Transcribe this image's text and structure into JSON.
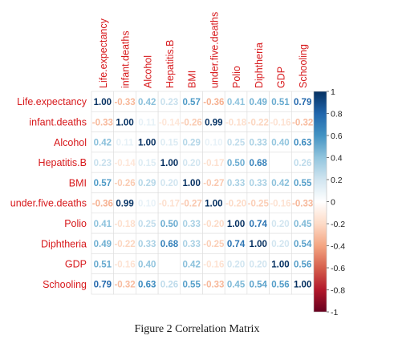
{
  "chart_data": {
    "type": "heatmap",
    "variables": [
      "Life.expectancy",
      "infant.deaths",
      "Alcohol",
      "Hepatitis.B",
      "BMI",
      "under.five.deaths",
      "Polio",
      "Diphtheria",
      "GDP",
      "Schooling"
    ],
    "matrix": [
      [
        1.0,
        -0.33,
        0.42,
        0.23,
        0.57,
        -0.36,
        0.41,
        0.49,
        0.51,
        0.79
      ],
      [
        -0.33,
        1.0,
        0.11,
        -0.14,
        -0.26,
        0.99,
        -0.18,
        -0.22,
        -0.16,
        -0.32
      ],
      [
        0.42,
        0.11,
        1.0,
        0.15,
        0.29,
        0.1,
        0.25,
        0.33,
        0.4,
        0.63
      ],
      [
        0.23,
        -0.14,
        0.15,
        1.0,
        0.2,
        -0.17,
        0.5,
        0.68,
        null,
        0.26
      ],
      [
        0.57,
        -0.26,
        0.29,
        0.2,
        1.0,
        -0.27,
        0.33,
        0.33,
        0.42,
        0.55
      ],
      [
        -0.36,
        0.99,
        0.1,
        -0.17,
        -0.27,
        1.0,
        -0.2,
        -0.25,
        -0.16,
        -0.33
      ],
      [
        0.41,
        -0.18,
        0.25,
        0.5,
        0.33,
        -0.2,
        1.0,
        0.74,
        0.2,
        0.45
      ],
      [
        0.49,
        -0.22,
        0.33,
        0.68,
        0.33,
        -0.25,
        0.74,
        1.0,
        0.2,
        0.54
      ],
      [
        0.51,
        -0.16,
        0.4,
        null,
        0.42,
        -0.16,
        0.2,
        0.2,
        1.0,
        0.56
      ],
      [
        0.79,
        -0.32,
        0.63,
        0.26,
        0.55,
        -0.33,
        0.45,
        0.54,
        0.56,
        1.0
      ]
    ],
    "colorbar": {
      "range": [
        -1,
        1
      ],
      "ticks": [
        "1",
        "0.8",
        "0.6",
        "0.4",
        "0.2",
        "0",
        "-0.2",
        "-0.4",
        "-0.6",
        "-0.8",
        "-1"
      ]
    },
    "label_color": "#d7191c",
    "color_scale": [
      "#67001f",
      "#b2182b",
      "#d6604d",
      "#f4a582",
      "#fddbc7",
      "#ffffff",
      "#d1e5f0",
      "#92c5de",
      "#4393c3",
      "#2166ac",
      "#053061"
    ]
  },
  "caption": "Figure 2 Correlation Matrix"
}
